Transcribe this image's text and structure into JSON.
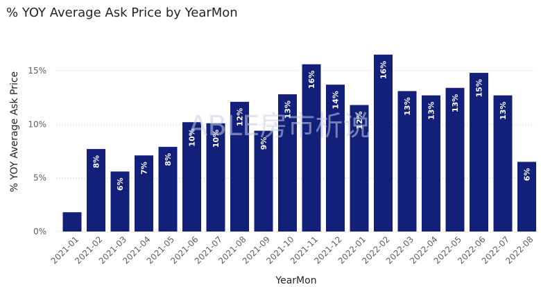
{
  "title": "% YOY Average Ask Price by YearMon",
  "watermark": "ABLE房市析说",
  "chart_data": {
    "type": "bar",
    "title": "% YOY Average Ask Price by YearMon",
    "xlabel": "YearMon",
    "ylabel": "% YOY Average Ask Price",
    "ylim": [
      0,
      0.18
    ],
    "yticks": [
      {
        "value": 0,
        "label": "0%"
      },
      {
        "value": 0.05,
        "label": "5%"
      },
      {
        "value": 0.1,
        "label": "10%"
      },
      {
        "value": 0.15,
        "label": "15%"
      }
    ],
    "grid": true,
    "bar_color": "#12207a",
    "categories": [
      "2021-01",
      "2021-02",
      "2021-03",
      "2021-04",
      "2021-05",
      "2021-06",
      "2021-07",
      "2021-08",
      "2021-09",
      "2021-10",
      "2021-11",
      "2021-12",
      "2022-01",
      "2022-02",
      "2022-03",
      "2022-04",
      "2022-05",
      "2022-06",
      "2022-07",
      "2022-08"
    ],
    "values": [
      0.018,
      0.077,
      0.056,
      0.071,
      0.079,
      0.102,
      0.101,
      0.121,
      0.094,
      0.128,
      0.156,
      0.137,
      0.118,
      0.165,
      0.131,
      0.127,
      0.134,
      0.148,
      0.127,
      0.065
    ],
    "data_labels": [
      "",
      "8%",
      "6%",
      "7%",
      "8%",
      "10%",
      "10%",
      "12%",
      "9%",
      "13%",
      "16%",
      "14%",
      "12%",
      "16%",
      "13%",
      "13%",
      "13%",
      "15%",
      "13%",
      "6%"
    ]
  }
}
